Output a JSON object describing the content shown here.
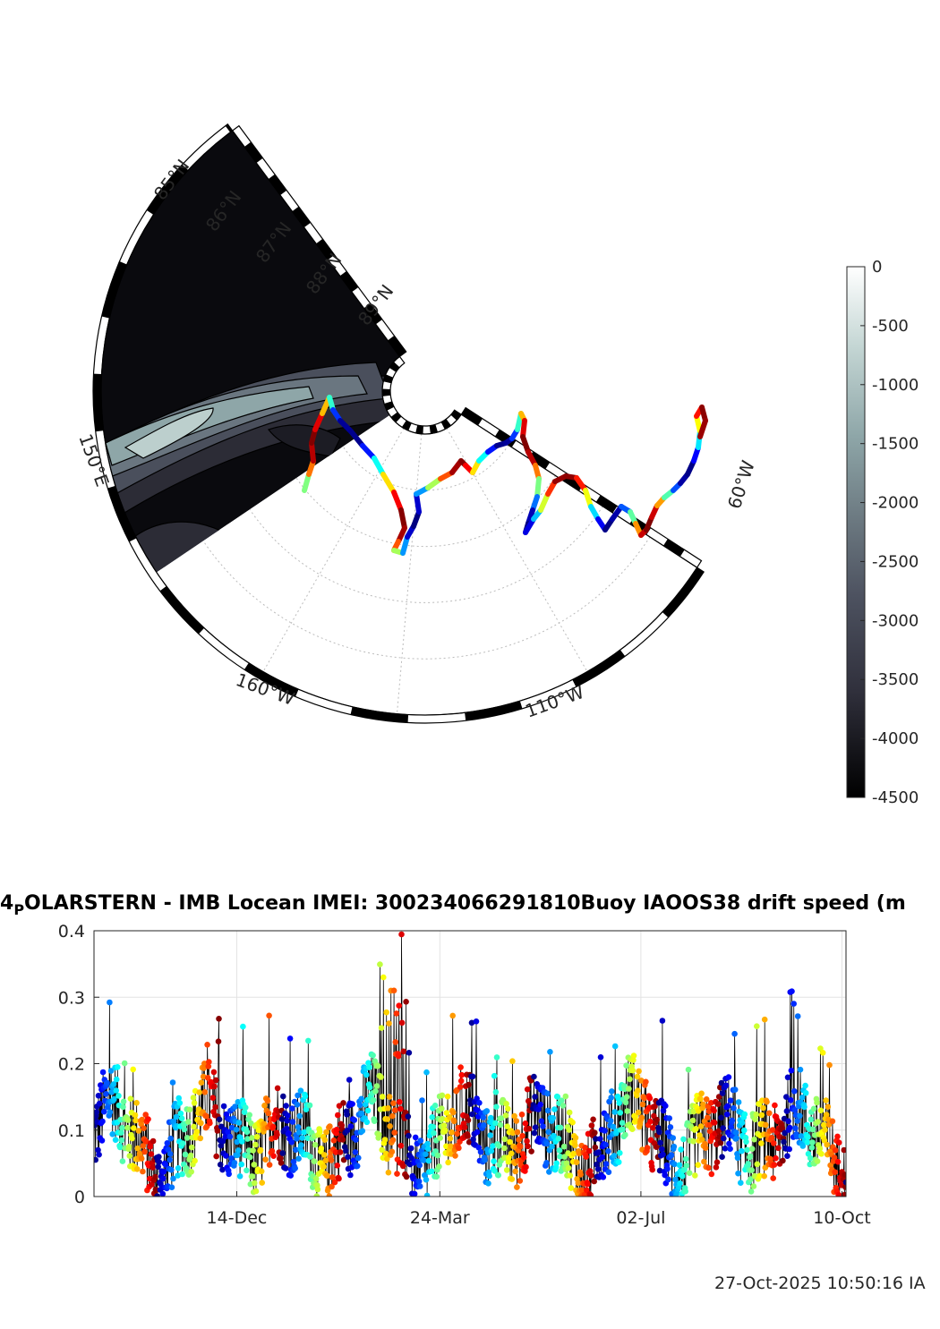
{
  "polar_map": {
    "lat_labels": [
      "85°N",
      "86°N",
      "87°N",
      "88°N",
      "89°N"
    ],
    "lon_labels": [
      "150°E",
      "160°W",
      "110°W",
      "60°W"
    ],
    "colorbar": {
      "ticks": [
        "0",
        "-500",
        "-1000",
        "-1500",
        "-2000",
        "-2500",
        "-3000",
        "-3500",
        "-4000",
        "-4500"
      ],
      "values": [
        0,
        -500,
        -1000,
        -1500,
        -2000,
        -2500,
        -3000,
        -3500,
        -4000,
        -4500
      ],
      "colors": [
        "#ffffff",
        "#c4d6d4",
        "#8ea6a8",
        "#6b7880",
        "#4d5260",
        "#30303c",
        "#000000"
      ]
    },
    "track_colormap": "jet"
  },
  "chart_data": {
    "type": "scatter",
    "title": "4",
    "title_sub": "P",
    "title_rest": "OLARSTERN - IMB Locean IMEI: 300234066291810Buoy IAOOS38 drift speed (m",
    "x_ticks": [
      "14-Dec",
      "24-Mar",
      "02-Jul",
      "10-Oct"
    ],
    "x_range": [
      "2019-10-04",
      "2020-10-12"
    ],
    "y_ticks": [
      "0",
      "0.1",
      "0.2",
      "0.3",
      "0.4"
    ],
    "ylim": [
      0,
      0.4
    ],
    "grid": true,
    "colormap": "jet",
    "series_note_seed": 7
  },
  "footer": {
    "timestamp": "27-Oct-2025 10:50:16 IA"
  }
}
